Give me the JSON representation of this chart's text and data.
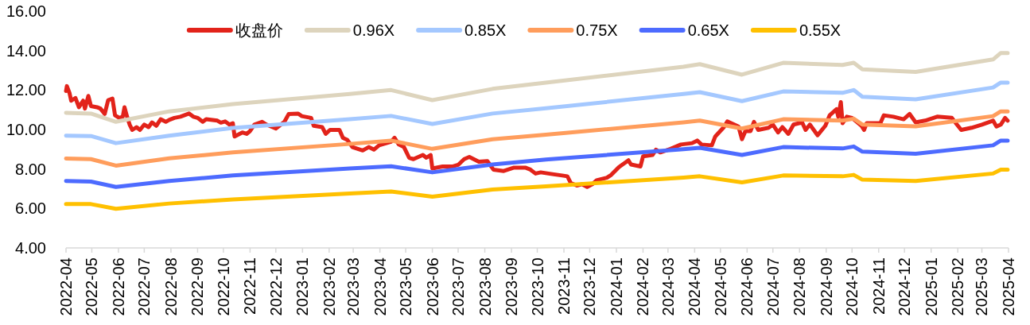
{
  "chart_data": {
    "type": "line",
    "legend": "top",
    "xlim": [
      "2022-04-01",
      "2025-04-01"
    ],
    "xticks": [
      "2022-04",
      "2022-05",
      "2022-06",
      "2022-07",
      "2022-08",
      "2022-09",
      "2022-10",
      "2022-11",
      "2022-12",
      "2023-01",
      "2023-02",
      "2023-03",
      "2023-04",
      "2023-05",
      "2023-06",
      "2023-07",
      "2023-08",
      "2023-09",
      "2023-10",
      "2023-11",
      "2023-12",
      "2024-01",
      "2024-02",
      "2024-03",
      "2024-04",
      "2024-05",
      "2024-06",
      "2024-07",
      "2024-08",
      "2024-09",
      "2024-10",
      "2024-11",
      "2024-12",
      "2025-01",
      "2025-02",
      "2025-03",
      "2025-04"
    ],
    "ylim": [
      4,
      16
    ],
    "yticks": [
      {
        "value": 4,
        "label": "4.00"
      },
      {
        "value": 6,
        "label": "6.00"
      },
      {
        "value": 8,
        "label": "8.00"
      },
      {
        "value": 10,
        "label": "10.00"
      },
      {
        "value": 12,
        "label": "12.00"
      },
      {
        "value": 14,
        "label": "14.00"
      },
      {
        "value": 16,
        "label": "16.00"
      }
    ],
    "series": [
      {
        "name": "收盘价",
        "color": "#e2231a",
        "x": [
          "2022-04-01",
          "2022-04-02",
          "2022-04-05",
          "2022-04-07",
          "2022-04-12",
          "2022-04-16",
          "2022-04-21",
          "2022-04-23",
          "2022-04-27",
          "2022-04-30",
          "2022-05-07",
          "2022-05-11",
          "2022-05-16",
          "2022-05-20",
          "2022-05-25",
          "2022-05-28",
          "2022-06-02",
          "2022-06-06",
          "2022-06-08",
          "2022-06-11",
          "2022-06-14",
          "2022-06-17",
          "2022-06-22",
          "2022-06-26",
          "2022-07-01",
          "2022-07-06",
          "2022-07-10",
          "2022-07-15",
          "2022-07-20",
          "2022-07-26",
          "2022-07-30",
          "2022-08-05",
          "2022-08-12",
          "2022-08-22",
          "2022-08-27",
          "2022-09-01",
          "2022-09-07",
          "2022-09-11",
          "2022-09-24",
          "2022-09-28",
          "2022-10-03",
          "2022-10-08",
          "2022-10-12",
          "2022-10-14",
          "2022-10-23",
          "2022-10-28",
          "2022-11-01",
          "2022-11-06",
          "2022-11-15",
          "2022-11-20",
          "2022-12-01",
          "2022-12-11",
          "2022-12-16",
          "2022-12-27",
          "2022-12-31",
          "2023-01-11",
          "2023-01-14",
          "2023-01-24",
          "2023-01-28",
          "2023-02-02",
          "2023-02-13",
          "2023-02-17",
          "2023-02-22",
          "2023-02-28",
          "2023-03-12",
          "2023-03-19",
          "2023-03-25",
          "2023-03-31",
          "2023-04-14",
          "2023-04-18",
          "2023-04-23",
          "2023-04-29",
          "2023-05-05",
          "2023-05-10",
          "2023-05-21",
          "2023-05-25",
          "2023-05-30",
          "2023-06-01",
          "2023-06-13",
          "2023-06-25",
          "2023-07-01",
          "2023-07-08",
          "2023-07-14",
          "2023-07-25",
          "2023-08-04",
          "2023-08-11",
          "2023-08-23",
          "2023-09-04",
          "2023-09-17",
          "2023-09-23",
          "2023-09-29",
          "2023-10-05",
          "2023-10-17",
          "2023-10-30",
          "2023-11-05",
          "2023-11-09",
          "2023-11-16",
          "2023-11-22",
          "2023-11-28",
          "2023-12-04",
          "2023-12-09",
          "2023-12-21",
          "2023-12-26",
          "2024-01-04",
          "2024-01-15",
          "2024-01-18",
          "2024-01-29",
          "2024-02-01",
          "2024-02-12",
          "2024-02-16",
          "2024-02-21",
          "2024-03-04",
          "2024-03-16",
          "2024-03-29",
          "2024-04-04",
          "2024-04-09",
          "2024-04-21",
          "2024-04-25",
          "2024-05-05",
          "2024-05-09",
          "2024-05-22",
          "2024-05-26",
          "2024-05-30",
          "2024-06-05",
          "2024-06-09",
          "2024-06-14",
          "2024-06-26",
          "2024-07-01",
          "2024-07-07",
          "2024-07-12",
          "2024-07-19",
          "2024-07-25",
          "2024-08-04",
          "2024-08-08",
          "2024-08-13",
          "2024-08-22",
          "2024-08-31",
          "2024-09-05",
          "2024-09-13",
          "2024-09-15",
          "2024-09-18",
          "2024-09-20",
          "2024-09-25",
          "2024-10-01",
          "2024-10-12",
          "2024-10-15",
          "2024-10-18",
          "2024-11-03",
          "2024-11-07",
          "2024-11-18",
          "2024-11-30",
          "2024-12-07",
          "2024-12-14",
          "2024-12-25",
          "2025-01-08",
          "2025-01-25",
          "2025-01-31",
          "2025-02-05",
          "2025-02-17",
          "2025-03-01",
          "2025-03-14",
          "2025-03-18",
          "2025-03-23",
          "2025-03-28",
          "2025-03-31"
        ],
        "values": [
          11.95,
          12.2,
          11.86,
          11.46,
          11.6,
          11.13,
          11.46,
          11.06,
          11.7,
          11.19,
          11.13,
          11.06,
          10.79,
          11.49,
          11.57,
          10.72,
          10.59,
          10.65,
          11.13,
          10.65,
          10.25,
          9.98,
          10.12,
          9.98,
          10.25,
          10.12,
          10.36,
          10.19,
          10.52,
          10.39,
          10.49,
          10.59,
          10.65,
          10.81,
          10.65,
          10.59,
          10.39,
          10.52,
          10.45,
          10.35,
          10.41,
          10.25,
          10.32,
          9.65,
          9.85,
          9.78,
          9.92,
          10.25,
          10.39,
          10.25,
          10.05,
          10.39,
          10.79,
          10.81,
          10.68,
          10.59,
          10.19,
          10.12,
          9.78,
          9.98,
          9.98,
          9.58,
          9.48,
          9.11,
          8.94,
          9.11,
          8.98,
          9.2,
          9.38,
          9.58,
          9.24,
          9.11,
          8.57,
          8.5,
          8.71,
          8.57,
          8.71,
          8.03,
          8.13,
          8.13,
          8.21,
          8.5,
          8.61,
          8.37,
          8.4,
          7.97,
          7.9,
          8.07,
          8.07,
          7.97,
          7.77,
          7.83,
          7.75,
          7.67,
          7.63,
          7.29,
          7.16,
          7.23,
          7.09,
          7.23,
          7.43,
          7.56,
          7.7,
          8.1,
          8.44,
          8.23,
          8.13,
          8.64,
          8.71,
          8.98,
          8.84,
          9.02,
          9.24,
          9.31,
          9.44,
          9.24,
          9.2,
          9.65,
          10.12,
          10.41,
          10.15,
          9.51,
          9.92,
          9.92,
          10.39,
          9.98,
          10.09,
          10.25,
          9.85,
          10.12,
          9.78,
          10.25,
          10.36,
          9.98,
          10.25,
          9.71,
          10.19,
          10.72,
          11.03,
          10.65,
          11.39,
          10.32,
          10.65,
          10.59,
          10.19,
          9.98,
          10.32,
          10.32,
          10.72,
          10.65,
          10.52,
          10.79,
          10.36,
          10.45,
          10.65,
          10.59,
          10.25,
          9.98,
          10.09,
          10.25,
          10.45,
          10.15,
          10.25,
          10.59,
          10.45
        ]
      },
      {
        "name": "0.96X",
        "color": "#ddd4bd",
        "x": [
          "2022-04-01",
          "2022-04-30",
          "2022-05-29",
          "2022-07-30",
          "2022-10-12",
          "2023-02-25",
          "2023-04-14",
          "2023-06-01",
          "2023-08-10",
          "2023-10-11",
          "2024-03-19",
          "2024-04-07",
          "2024-05-26",
          "2024-07-13",
          "2024-09-20",
          "2024-10-03",
          "2024-10-13",
          "2024-12-14",
          "2025-03-14",
          "2025-03-23",
          "2025-03-31"
        ],
        "values": [
          10.85,
          10.81,
          10.39,
          10.92,
          11.29,
          11.8,
          12.0,
          11.49,
          12.06,
          12.38,
          13.18,
          13.31,
          12.78,
          13.38,
          13.27,
          13.38,
          13.05,
          12.92,
          13.55,
          13.88,
          13.88
        ]
      },
      {
        "name": "0.85X",
        "color": "#a4c8ff",
        "x": [
          "2022-04-01",
          "2022-04-30",
          "2022-05-29",
          "2022-07-30",
          "2022-10-12",
          "2023-02-25",
          "2023-04-14",
          "2023-06-01",
          "2023-08-10",
          "2023-10-11",
          "2024-03-19",
          "2024-04-07",
          "2024-05-26",
          "2024-07-13",
          "2024-09-20",
          "2024-10-03",
          "2024-10-13",
          "2024-12-14",
          "2025-03-14",
          "2025-03-23",
          "2025-03-31"
        ],
        "values": [
          9.69,
          9.67,
          9.31,
          9.69,
          10.08,
          10.52,
          10.69,
          10.28,
          10.81,
          11.08,
          11.8,
          11.89,
          11.44,
          11.93,
          11.86,
          12.0,
          11.66,
          11.53,
          12.13,
          12.38,
          12.38
        ]
      },
      {
        "name": "0.75X",
        "color": "#ff9d5c",
        "x": [
          "2022-04-01",
          "2022-04-30",
          "2022-05-29",
          "2022-07-30",
          "2022-10-12",
          "2023-02-25",
          "2023-04-14",
          "2023-06-01",
          "2023-08-10",
          "2023-10-11",
          "2024-03-19",
          "2024-04-07",
          "2024-05-26",
          "2024-07-13",
          "2024-09-20",
          "2024-10-03",
          "2024-10-13",
          "2024-12-14",
          "2025-03-14",
          "2025-03-23",
          "2025-03-31"
        ],
        "values": [
          8.53,
          8.5,
          8.17,
          8.54,
          8.84,
          9.27,
          9.44,
          9.02,
          9.51,
          9.74,
          10.36,
          10.45,
          10.05,
          10.52,
          10.45,
          10.55,
          10.25,
          10.16,
          10.68,
          10.92,
          10.92
        ]
      },
      {
        "name": "0.65X",
        "color": "#4d6bff",
        "x": [
          "2022-04-01",
          "2022-04-30",
          "2022-05-29",
          "2022-07-30",
          "2022-10-12",
          "2023-02-25",
          "2023-04-14",
          "2023-06-01",
          "2023-08-10",
          "2023-10-11",
          "2024-03-19",
          "2024-04-07",
          "2024-05-26",
          "2024-07-13",
          "2024-09-20",
          "2024-10-03",
          "2024-10-13",
          "2024-12-14",
          "2025-03-14",
          "2025-03-23",
          "2025-03-31"
        ],
        "values": [
          7.39,
          7.36,
          7.09,
          7.39,
          7.67,
          8.03,
          8.14,
          7.83,
          8.23,
          8.48,
          9.0,
          9.07,
          8.71,
          9.11,
          9.04,
          9.14,
          8.88,
          8.77,
          9.2,
          9.44,
          9.44
        ]
      },
      {
        "name": "0.55X",
        "color": "#ffc000",
        "x": [
          "2022-04-01",
          "2022-04-30",
          "2022-05-29",
          "2022-07-30",
          "2022-10-12",
          "2023-02-25",
          "2023-04-14",
          "2023-06-01",
          "2023-08-10",
          "2023-10-11",
          "2024-03-19",
          "2024-04-07",
          "2024-05-26",
          "2024-07-13",
          "2024-09-20",
          "2024-10-03",
          "2024-10-13",
          "2024-12-14",
          "2025-03-14",
          "2025-03-23",
          "2025-03-31"
        ],
        "values": [
          6.22,
          6.22,
          5.98,
          6.25,
          6.46,
          6.76,
          6.86,
          6.6,
          6.96,
          7.12,
          7.56,
          7.63,
          7.32,
          7.67,
          7.63,
          7.7,
          7.46,
          7.39,
          7.77,
          7.97,
          7.97
        ]
      }
    ]
  }
}
